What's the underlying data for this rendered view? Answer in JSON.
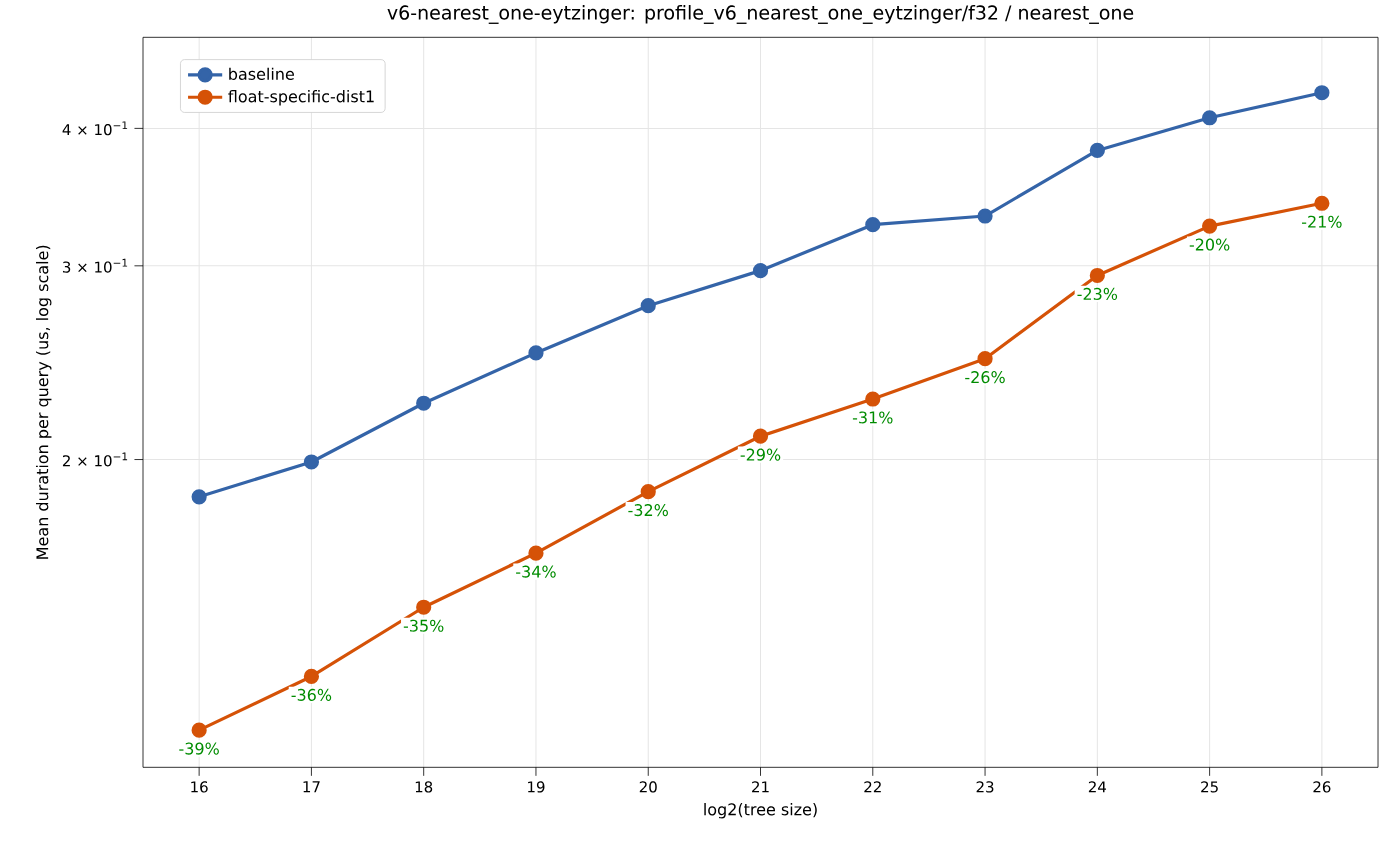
{
  "chart_data": {
    "type": "line",
    "title": "v6-nearest_one-eytzinger: profile_v6_nearest_one_eytzinger/f32 / nearest_one",
    "xlabel": "log2(tree size)",
    "ylabel": "Mean duration per query (us, log scale)",
    "x": [
      16,
      17,
      18,
      19,
      20,
      21,
      22,
      23,
      24,
      25,
      26
    ],
    "series": [
      {
        "name": "baseline",
        "color": "#3464a8",
        "values": [
          0.185,
          0.199,
          0.225,
          0.25,
          0.276,
          0.297,
          0.327,
          0.333,
          0.382,
          0.409,
          0.431
        ]
      },
      {
        "name": "float-specific-dist1",
        "color": "#d55207",
        "values": [
          0.1135,
          0.127,
          0.1468,
          0.1644,
          0.187,
          0.21,
          0.227,
          0.247,
          0.294,
          0.326,
          0.342
        ]
      }
    ],
    "annotations": [
      {
        "text": "-39%",
        "x": 16,
        "y": 0.1135
      },
      {
        "text": "-36%",
        "x": 17,
        "y": 0.127
      },
      {
        "text": "-35%",
        "x": 18,
        "y": 0.1468
      },
      {
        "text": "-34%",
        "x": 19,
        "y": 0.1644
      },
      {
        "text": "-32%",
        "x": 20,
        "y": 0.187
      },
      {
        "text": "-29%",
        "x": 21,
        "y": 0.21
      },
      {
        "text": "-31%",
        "x": 22,
        "y": 0.227
      },
      {
        "text": "-26%",
        "x": 23,
        "y": 0.247
      },
      {
        "text": "-23%",
        "x": 24,
        "y": 0.294
      },
      {
        "text": "-20%",
        "x": 25,
        "y": 0.326
      },
      {
        "text": "-21%",
        "x": 26,
        "y": 0.342
      }
    ],
    "xlim": [
      15.5,
      26.5
    ],
    "xticks": [
      16,
      17,
      18,
      19,
      20,
      21,
      22,
      23,
      24,
      25,
      26
    ],
    "ylim": [
      0.105,
      0.484
    ],
    "yticks": [
      {
        "value": 0.2,
        "label": "2 × 10$^{−1}$"
      },
      {
        "value": 0.3,
        "label": "3 × 10$^{−1}$"
      },
      {
        "value": 0.4,
        "label": "4 × 10$^{−1}$"
      }
    ],
    "log": "y",
    "grid": true,
    "legend": "top left",
    "marker": "circle",
    "line_style": "solid"
  }
}
